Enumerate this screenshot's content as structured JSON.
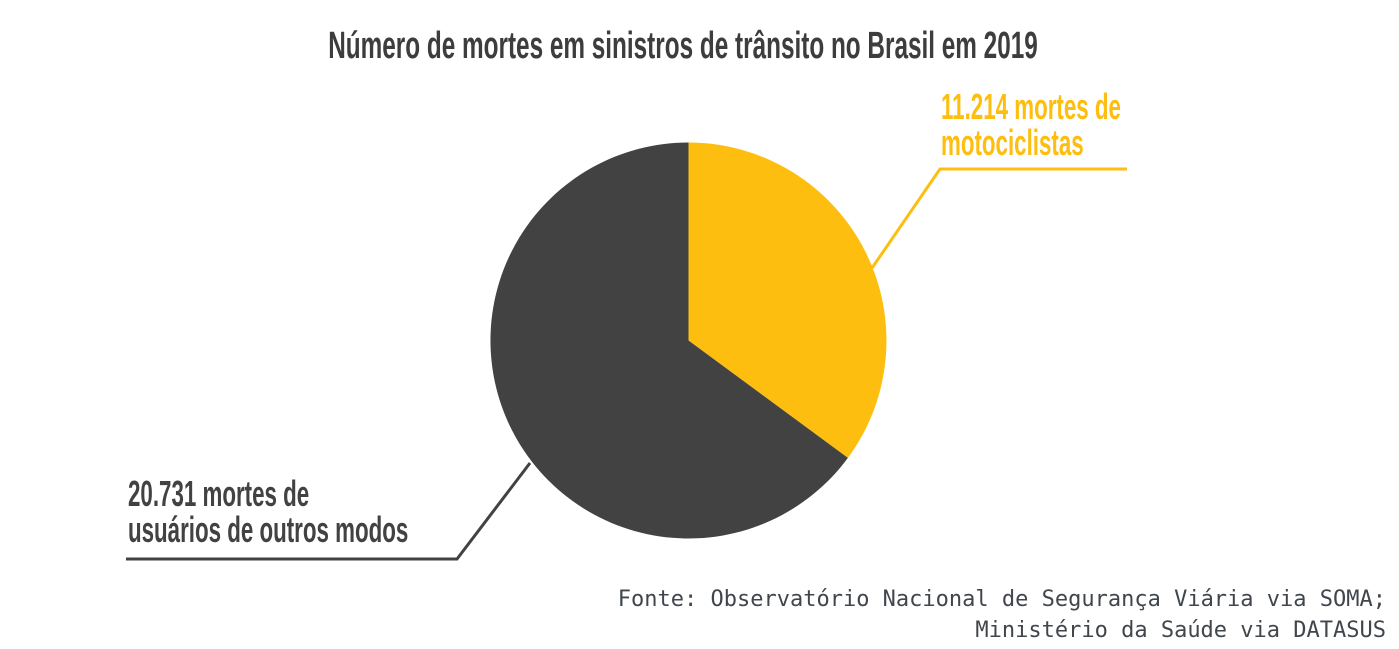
{
  "title": "Número de mortes em sinistros de trânsito no Brasil em 2019",
  "chart_data": {
    "type": "pie",
    "title": "Número de mortes em sinistros de trânsito no Brasil em 2019",
    "start_angle_deg": 0,
    "direction": "clockwise",
    "slices": [
      {
        "name": "motociclistas",
        "label": "11.214 mortes de motociclistas",
        "value": 11214,
        "color": "#fdbe10"
      },
      {
        "name": "usuarios-de-outros-modos",
        "label": "20.731 mortes de usuários de outros modos",
        "value": 20731,
        "color": "#424242"
      }
    ],
    "legend_position": "callout-labels",
    "source": "Fonte: Observatório Nacional de Segurança Viária via SOMA; Ministério da Saúde via DATASUS"
  },
  "labels": {
    "motociclistas": {
      "line1": "11.214 mortes de",
      "line2": "motociclistas"
    },
    "outros_modos": {
      "line1": "20.731 mortes de",
      "line2": "usuários de outros modos"
    }
  },
  "source": {
    "line1": "Fonte: Observatório Nacional de Segurança Viária via SOMA;",
    "line2": "Ministério da Saúde via DATASUS"
  },
  "colors": {
    "yellow": "#fdbe10",
    "dark": "#424242",
    "title_text": "#3d3d3d",
    "source_text": "#40464c",
    "background": "#ffffff"
  }
}
